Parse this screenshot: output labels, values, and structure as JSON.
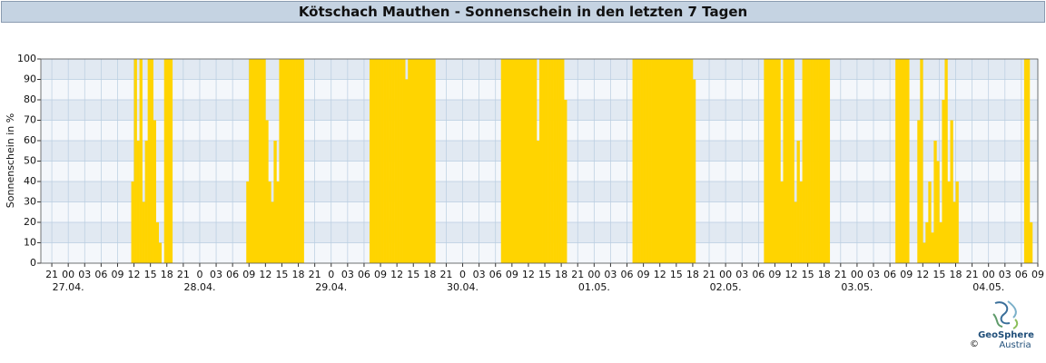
{
  "chart_data": {
    "type": "bar",
    "title": "Kötschach Mauthen - Sonnenschein in den letzten 7 Tagen",
    "ylabel": "Sonnenschein in %",
    "color": "#ffd400",
    "grid": true,
    "ylim": [
      0,
      100
    ],
    "yticks": [
      0,
      10,
      20,
      30,
      40,
      50,
      60,
      70,
      80,
      90,
      100
    ],
    "xlim": [
      -5,
      177
    ],
    "xticks": [
      {
        "value": -3,
        "label": "21"
      },
      {
        "value": 0,
        "label": "00"
      },
      {
        "value": 3,
        "label": "03"
      },
      {
        "value": 6,
        "label": "06"
      },
      {
        "value": 9,
        "label": "09"
      },
      {
        "value": 12,
        "label": "12"
      },
      {
        "value": 15,
        "label": "15"
      },
      {
        "value": 18,
        "label": "18"
      },
      {
        "value": 21,
        "label": "21"
      },
      {
        "value": 24,
        "label": "0"
      },
      {
        "value": 27,
        "label": "03"
      },
      {
        "value": 30,
        "label": "06"
      },
      {
        "value": 33,
        "label": "09"
      },
      {
        "value": 36,
        "label": "12"
      },
      {
        "value": 39,
        "label": "15"
      },
      {
        "value": 42,
        "label": "18"
      },
      {
        "value": 45,
        "label": "21"
      },
      {
        "value": 48,
        "label": "0"
      },
      {
        "value": 51,
        "label": "03"
      },
      {
        "value": 54,
        "label": "06"
      },
      {
        "value": 57,
        "label": "09"
      },
      {
        "value": 60,
        "label": "12"
      },
      {
        "value": 63,
        "label": "15"
      },
      {
        "value": 66,
        "label": "18"
      },
      {
        "value": 69,
        "label": "21"
      },
      {
        "value": 72,
        "label": "0"
      },
      {
        "value": 75,
        "label": "03"
      },
      {
        "value": 78,
        "label": "06"
      },
      {
        "value": 81,
        "label": "09"
      },
      {
        "value": 84,
        "label": "12"
      },
      {
        "value": 87,
        "label": "15"
      },
      {
        "value": 90,
        "label": "18"
      },
      {
        "value": 93,
        "label": "21"
      },
      {
        "value": 96,
        "label": "00"
      },
      {
        "value": 99,
        "label": "03"
      },
      {
        "value": 102,
        "label": "06"
      },
      {
        "value": 105,
        "label": "09"
      },
      {
        "value": 108,
        "label": "12"
      },
      {
        "value": 111,
        "label": "15"
      },
      {
        "value": 114,
        "label": "18"
      },
      {
        "value": 117,
        "label": "21"
      },
      {
        "value": 120,
        "label": "00"
      },
      {
        "value": 123,
        "label": "03"
      },
      {
        "value": 126,
        "label": "06"
      },
      {
        "value": 129,
        "label": "09"
      },
      {
        "value": 132,
        "label": "12"
      },
      {
        "value": 135,
        "label": "15"
      },
      {
        "value": 138,
        "label": "18"
      },
      {
        "value": 141,
        "label": "21"
      },
      {
        "value": 144,
        "label": "00"
      },
      {
        "value": 147,
        "label": "03"
      },
      {
        "value": 150,
        "label": "06"
      },
      {
        "value": 153,
        "label": "09"
      },
      {
        "value": 156,
        "label": "12"
      },
      {
        "value": 159,
        "label": "15"
      },
      {
        "value": 162,
        "label": "18"
      },
      {
        "value": 165,
        "label": "21"
      },
      {
        "value": 168,
        "label": "00"
      },
      {
        "value": 171,
        "label": "03"
      },
      {
        "value": 174,
        "label": "06"
      },
      {
        "value": 177,
        "label": "09"
      }
    ],
    "date_labels": [
      {
        "value": 0,
        "label": "27.04."
      },
      {
        "value": 24,
        "label": "28.04."
      },
      {
        "value": 48,
        "label": "29.04."
      },
      {
        "value": 72,
        "label": "30.04."
      },
      {
        "value": 96,
        "label": "01.05."
      },
      {
        "value": 120,
        "label": "02.05."
      },
      {
        "value": 144,
        "label": "03.05."
      },
      {
        "value": 168,
        "label": "04.05."
      }
    ],
    "x": [
      11.5,
      12,
      12.5,
      13,
      13.5,
      14,
      14.5,
      15,
      15.5,
      16,
      16.5,
      17,
      17.5,
      18,
      18.5,
      32.5,
      33,
      33.5,
      34,
      34.5,
      35,
      35.5,
      36,
      36.5,
      37,
      37.5,
      38,
      38.5,
      39,
      39.5,
      40,
      40.5,
      41,
      41.5,
      42,
      42.5,
      55,
      55.5,
      56,
      56.5,
      57,
      57.5,
      58,
      58.5,
      59,
      59.5,
      60,
      60.5,
      61,
      61.5,
      62,
      62.5,
      63,
      63.5,
      64,
      64.5,
      65,
      65.5,
      66,
      66.5,
      79,
      79.5,
      80,
      80.5,
      81,
      81.5,
      82,
      82.5,
      83,
      83.5,
      84,
      84.5,
      85,
      85.5,
      86,
      86.5,
      87,
      87.5,
      88,
      88.5,
      89,
      89.5,
      90,
      90.5,
      103,
      103.5,
      104,
      104.5,
      105,
      105.5,
      106,
      106.5,
      107,
      107.5,
      108,
      108.5,
      109,
      109.5,
      110,
      110.5,
      111,
      111.5,
      112,
      112.5,
      113,
      113.5,
      114,
      127,
      127.5,
      128,
      128.5,
      129,
      129.5,
      130,
      130.5,
      131,
      131.5,
      132,
      132.5,
      133,
      133.5,
      134,
      134.5,
      135,
      135.5,
      136,
      136.5,
      137,
      137.5,
      138,
      138.5,
      151,
      151.5,
      152,
      152.5,
      153,
      155,
      155.5,
      156,
      156.5,
      157,
      157.5,
      158,
      158.5,
      159,
      159.5,
      160,
      160.5,
      161,
      161.5,
      162,
      174.5,
      175,
      175.5
    ],
    "values": [
      40,
      100,
      60,
      100,
      30,
      60,
      100,
      100,
      70,
      20,
      10,
      0,
      100,
      100,
      100,
      40,
      100,
      100,
      100,
      100,
      100,
      100,
      70,
      40,
      30,
      60,
      40,
      100,
      100,
      100,
      100,
      100,
      100,
      100,
      100,
      100,
      100,
      100,
      100,
      100,
      100,
      100,
      100,
      100,
      100,
      100,
      100,
      100,
      100,
      90,
      100,
      100,
      100,
      100,
      100,
      100,
      100,
      100,
      100,
      100,
      100,
      100,
      100,
      100,
      100,
      100,
      100,
      100,
      100,
      100,
      100,
      100,
      100,
      60,
      100,
      100,
      100,
      100,
      100,
      100,
      100,
      100,
      100,
      80,
      100,
      100,
      100,
      100,
      100,
      100,
      100,
      100,
      100,
      100,
      100,
      100,
      100,
      100,
      100,
      100,
      100,
      100,
      100,
      100,
      100,
      100,
      90,
      100,
      100,
      100,
      100,
      100,
      100,
      40,
      100,
      100,
      100,
      100,
      30,
      60,
      40,
      100,
      100,
      100,
      100,
      100,
      100,
      100,
      100,
      100,
      100,
      100,
      100,
      100,
      100,
      100,
      70,
      100,
      10,
      20,
      40,
      15,
      60,
      50,
      20,
      80,
      100,
      40,
      70,
      30,
      40,
      100,
      100,
      20
    ]
  },
  "logo": {
    "name": "GeoSphere",
    "sub": "Austria",
    "copyright": "©"
  }
}
